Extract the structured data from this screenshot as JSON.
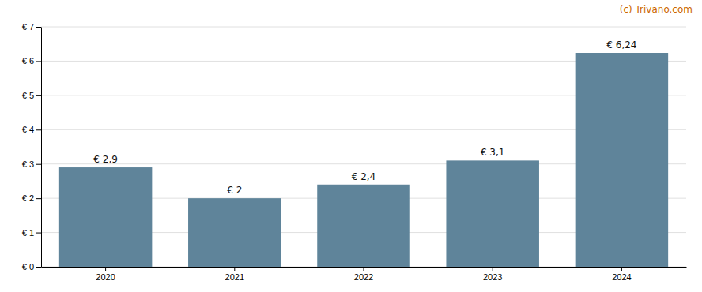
{
  "chart_data": {
    "type": "bar",
    "categories": [
      "2020",
      "2021",
      "2022",
      "2023",
      "2024"
    ],
    "values": [
      2.9,
      2.0,
      2.4,
      3.1,
      6.24
    ],
    "value_labels": [
      "€ 2,9",
      "€ 2",
      "€ 2,4",
      "€ 3,1",
      "€ 6,24"
    ],
    "data_labels": true,
    "color": "#5f849a",
    "ylim": [
      0,
      7
    ],
    "yticks": [
      {
        "value": 0,
        "label": "€ 0"
      },
      {
        "value": 1,
        "label": "€ 1"
      },
      {
        "value": 2,
        "label": "€ 2"
      },
      {
        "value": 3,
        "label": "€ 3"
      },
      {
        "value": 4,
        "label": "€ 4"
      },
      {
        "value": 5,
        "label": "€ 5"
      },
      {
        "value": 6,
        "label": "€ 6"
      },
      {
        "value": 7,
        "label": "€ 7"
      }
    ],
    "grid": true,
    "annotations": [
      {
        "text": "(c) Trivano.com",
        "color": "#cc6600"
      }
    ]
  }
}
